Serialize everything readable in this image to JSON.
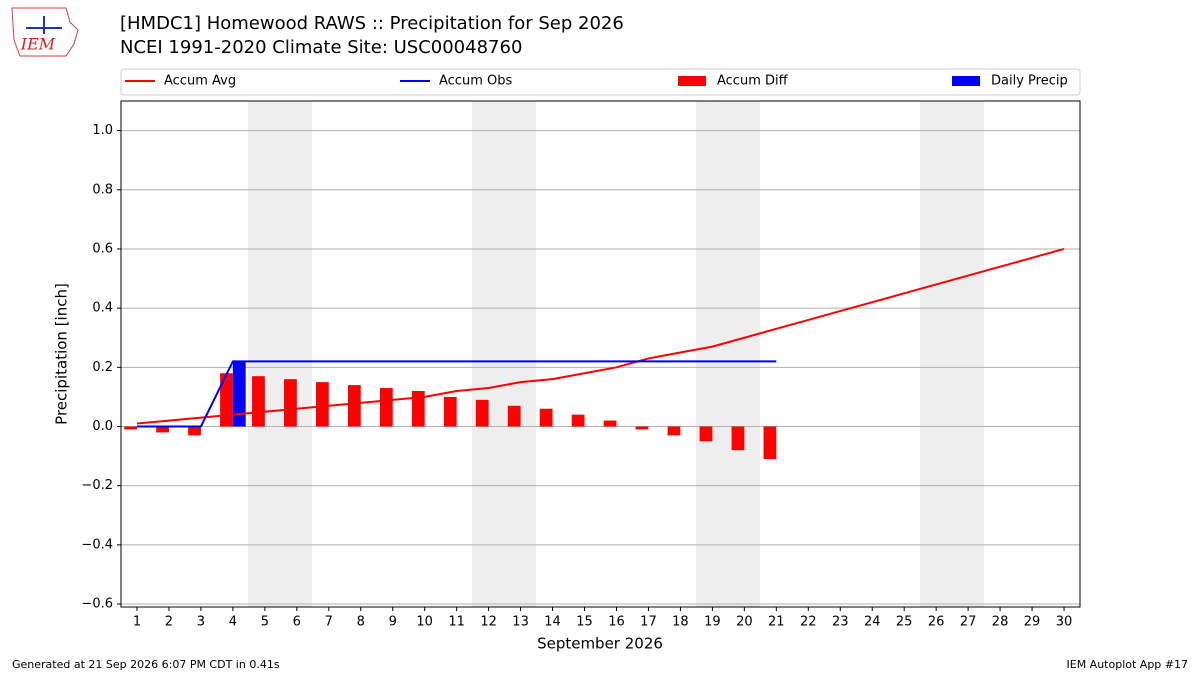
{
  "chart_data": {
    "type": "line",
    "title": "[HMDC1] Homewood RAWS :: Precipitation for Sep 2026",
    "subtitle": "NCEI 1991-2020 Climate Site: USC00048760",
    "logo_text": "IEM",
    "xlabel": "September 2026",
    "ylabel": "Precipitation [inch]",
    "footer_left": "Generated at 21 Sep 2026 6:07 PM CDT in 0.41s",
    "footer_right": "IEM Autoplot App #17",
    "x": [
      1,
      2,
      3,
      4,
      5,
      6,
      7,
      8,
      9,
      10,
      11,
      12,
      13,
      14,
      15,
      16,
      17,
      18,
      19,
      20,
      21,
      22,
      23,
      24,
      25,
      26,
      27,
      28,
      29,
      30
    ],
    "xlim": [
      0.5,
      30.5
    ],
    "xticks": [
      1,
      2,
      3,
      4,
      5,
      6,
      7,
      8,
      9,
      10,
      11,
      12,
      13,
      14,
      15,
      16,
      17,
      18,
      19,
      20,
      21,
      22,
      23,
      24,
      25,
      26,
      27,
      28,
      29,
      30
    ],
    "ylim": [
      -0.61,
      1.1
    ],
    "yticks": [
      {
        "value": -0.6,
        "label": "−0.6"
      },
      {
        "value": -0.4,
        "label": "−0.4"
      },
      {
        "value": -0.2,
        "label": "−0.2"
      },
      {
        "value": 0,
        "label": "0.0"
      },
      {
        "value": 0.2,
        "label": "0.2"
      },
      {
        "value": 0.4,
        "label": "0.4"
      },
      {
        "value": 0.6,
        "label": "0.6"
      },
      {
        "value": 0.8,
        "label": "0.8"
      },
      {
        "value": 1,
        "label": "1.0"
      }
    ],
    "grid": true,
    "series": [
      {
        "name": "Accum Avg",
        "color": "#ff0000",
        "kind": "line",
        "values": [
          0.01,
          0.02,
          0.03,
          0.04,
          0.05,
          0.06,
          0.07,
          0.08,
          0.09,
          0.1,
          0.12,
          0.13,
          0.15,
          0.16,
          0.18,
          0.2,
          0.23,
          0.25,
          0.27,
          0.3,
          0.33,
          0.36,
          0.39,
          0.42,
          0.45,
          0.48,
          0.51,
          0.54,
          0.57,
          0.6
        ]
      },
      {
        "name": "Accum Obs",
        "color": "#0000ff",
        "kind": "line",
        "values": [
          0,
          0,
          0,
          0.22,
          0.22,
          0.22,
          0.22,
          0.22,
          0.22,
          0.22,
          0.22,
          0.22,
          0.22,
          0.22,
          0.22,
          0.22,
          0.22,
          0.22,
          0.22,
          0.22,
          0.22,
          null,
          null,
          null,
          null,
          null,
          null,
          null,
          null,
          null
        ]
      },
      {
        "name": "Accum Diff",
        "color": "#ff0000",
        "kind": "bar",
        "values": [
          -0.01,
          -0.02,
          -0.03,
          0.18,
          0.17,
          0.16,
          0.15,
          0.14,
          0.13,
          0.12,
          0.1,
          0.09,
          0.07,
          0.06,
          0.04,
          0.02,
          -0.01,
          -0.03,
          -0.05,
          -0.08,
          -0.11,
          null,
          null,
          null,
          null,
          null,
          null,
          null,
          null,
          null
        ]
      },
      {
        "name": "Daily Precip",
        "color": "#0000ff",
        "kind": "bar",
        "values": [
          0,
          0,
          0,
          0.22,
          0,
          0,
          0,
          0,
          0,
          0,
          0,
          0,
          0,
          0,
          0,
          0,
          0,
          0,
          0,
          0,
          0,
          null,
          null,
          null,
          null,
          null,
          null,
          null,
          null,
          null
        ]
      }
    ]
  }
}
